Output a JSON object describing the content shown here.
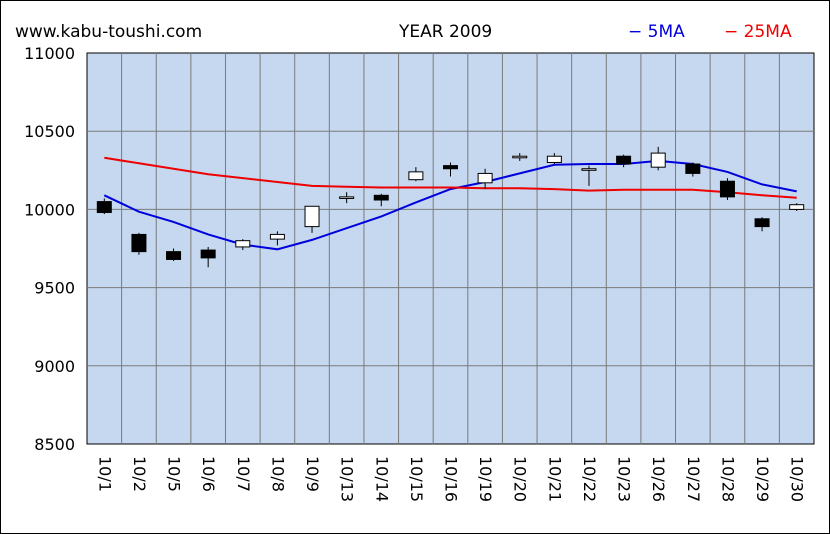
{
  "header": {
    "site": "www.kabu-toushi.com",
    "title": "YEAR 2009",
    "legend_5ma": "− 5MA",
    "legend_25ma": "− 25MA"
  },
  "colors": {
    "plot_bg": "#c5d8ef",
    "grid": "#7a7a7a",
    "ma5": "#0000dd",
    "ma25": "#ee0000",
    "up_candle": "#ffffff",
    "down_candle": "#000000"
  },
  "chart_data": {
    "type": "candlestick",
    "title": "YEAR 2009",
    "ylim": [
      8500,
      11000
    ],
    "yticks": [
      8500,
      9000,
      9500,
      10000,
      10500,
      11000
    ],
    "grid": true,
    "legend_position": "top-right",
    "categories": [
      "10/1",
      "10/2",
      "10/5",
      "10/6",
      "10/7",
      "10/8",
      "10/9",
      "10/13",
      "10/14",
      "10/15",
      "10/16",
      "10/19",
      "10/20",
      "10/21",
      "10/22",
      "10/23",
      "10/26",
      "10/27",
      "10/28",
      "10/29",
      "10/30"
    ],
    "candles": [
      {
        "open": 10050,
        "high": 10070,
        "low": 9970,
        "close": 9980
      },
      {
        "open": 9840,
        "high": 9850,
        "low": 9710,
        "close": 9730
      },
      {
        "open": 9730,
        "high": 9750,
        "low": 9670,
        "close": 9680
      },
      {
        "open": 9740,
        "high": 9760,
        "low": 9630,
        "close": 9690
      },
      {
        "open": 9760,
        "high": 9810,
        "low": 9740,
        "close": 9800
      },
      {
        "open": 9810,
        "high": 9860,
        "low": 9770,
        "close": 9840
      },
      {
        "open": 9890,
        "high": 10020,
        "low": 9850,
        "close": 10020
      },
      {
        "open": 10070,
        "high": 10110,
        "low": 10040,
        "close": 10080
      },
      {
        "open": 10090,
        "high": 10100,
        "low": 10020,
        "close": 10060
      },
      {
        "open": 10190,
        "high": 10270,
        "low": 10180,
        "close": 10240
      },
      {
        "open": 10280,
        "high": 10300,
        "low": 10210,
        "close": 10260
      },
      {
        "open": 10170,
        "high": 10260,
        "low": 10130,
        "close": 10230
      },
      {
        "open": 10330,
        "high": 10360,
        "low": 10310,
        "close": 10340
      },
      {
        "open": 10300,
        "high": 10360,
        "low": 10290,
        "close": 10340
      },
      {
        "open": 10250,
        "high": 10280,
        "low": 10150,
        "close": 10260
      },
      {
        "open": 10340,
        "high": 10350,
        "low": 10270,
        "close": 10290
      },
      {
        "open": 10270,
        "high": 10400,
        "low": 10250,
        "close": 10360
      },
      {
        "open": 10290,
        "high": 10300,
        "low": 10210,
        "close": 10230
      },
      {
        "open": 10180,
        "high": 10200,
        "low": 10060,
        "close": 10080
      },
      {
        "open": 9940,
        "high": 9950,
        "low": 9860,
        "close": 9890
      },
      {
        "open": 10000,
        "high": 10040,
        "low": 9990,
        "close": 10030
      }
    ],
    "series": [
      {
        "name": "5MA",
        "values": [
          10090,
          9985,
          9920,
          9840,
          9775,
          9745,
          9805,
          9880,
          9955,
          10045,
          10130,
          10175,
          10230,
          10285,
          10290,
          10290,
          10310,
          10290,
          10240,
          10160,
          10115
        ]
      },
      {
        "name": "25MA",
        "values": [
          10330,
          10295,
          10260,
          10225,
          10200,
          10175,
          10150,
          10145,
          10140,
          10140,
          10140,
          10135,
          10135,
          10130,
          10120,
          10125,
          10125,
          10125,
          10110,
          10090,
          10075
        ]
      }
    ]
  }
}
